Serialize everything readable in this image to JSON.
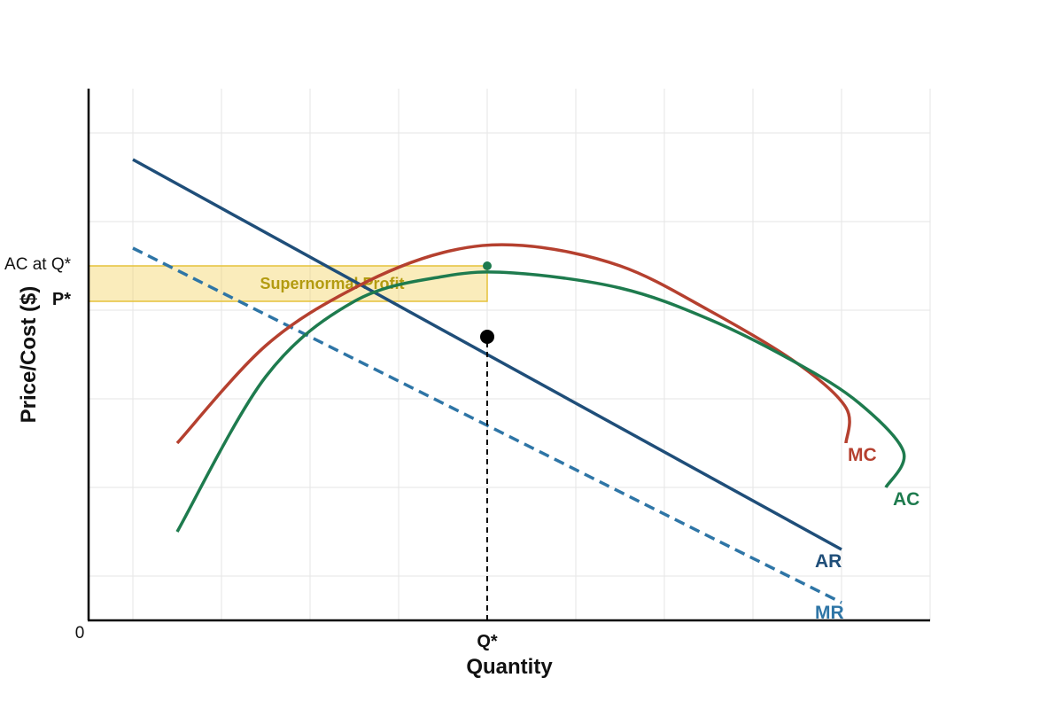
{
  "chart_data": {
    "type": "line",
    "xlabel": "Quantity",
    "ylabel": "Price/Cost ($)",
    "xlim": [
      0,
      9.5
    ],
    "ylim": [
      0,
      6
    ],
    "grid": true,
    "x_ticks": [
      {
        "value": 0,
        "label": "0"
      },
      {
        "value": 4.5,
        "label": "Q*"
      }
    ],
    "y_ticks": [
      {
        "value": 3.6,
        "label": "P*"
      },
      {
        "value": 4.0,
        "label": "AC at Q*"
      }
    ],
    "series": [
      {
        "name": "AR",
        "style": "solid",
        "color": "#1f4e79",
        "points": [
          [
            0.5,
            5.2
          ],
          [
            8.5,
            0.8
          ]
        ]
      },
      {
        "name": "MR",
        "style": "dashed",
        "color": "#2e75a6",
        "points": [
          [
            0.5,
            4.2
          ],
          [
            8.5,
            0.2
          ]
        ]
      },
      {
        "name": "MC",
        "style": "solid",
        "color": "#b5402f",
        "points": [
          [
            1.0,
            2.0
          ],
          [
            2.0,
            3.1
          ],
          [
            3.0,
            3.75
          ],
          [
            4.0,
            4.15
          ],
          [
            4.9,
            4.23
          ],
          [
            6.0,
            4.0
          ],
          [
            7.0,
            3.5
          ],
          [
            8.0,
            2.9
          ],
          [
            8.55,
            2.4
          ],
          [
            8.55,
            2.0
          ]
        ]
      },
      {
        "name": "AC",
        "style": "solid",
        "color": "#1e7b4e",
        "points": [
          [
            1.0,
            1.0
          ],
          [
            2.0,
            2.75
          ],
          [
            3.0,
            3.6
          ],
          [
            4.0,
            3.88
          ],
          [
            4.8,
            3.92
          ],
          [
            6.0,
            3.75
          ],
          [
            7.0,
            3.4
          ],
          [
            8.0,
            2.9
          ],
          [
            8.7,
            2.45
          ],
          [
            9.2,
            1.9
          ],
          [
            9.0,
            1.5
          ]
        ]
      }
    ],
    "shaded_region": {
      "label": "Supernormal Profit",
      "x": [
        0,
        4.5
      ],
      "y": [
        3.6,
        4.0
      ],
      "color": "#f2cf55"
    },
    "points": [
      {
        "x": 4.5,
        "y": 3.2,
        "color": "#000000",
        "size": "large"
      },
      {
        "x": 4.5,
        "y": 4.0,
        "color": "#1e7b4e",
        "size": "small"
      }
    ],
    "annotations": [
      {
        "type": "vertical-dashed",
        "x": 4.5,
        "y_from": 0,
        "y_to": 3.2
      }
    ]
  }
}
